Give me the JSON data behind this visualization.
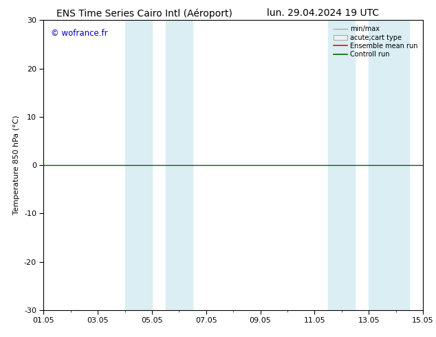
{
  "title_left": "ENS Time Series Cairo Intl (Aéroport)",
  "title_right": "lun. 29.04.2024 19 UTC",
  "ylabel": "Temperature 850 hPa (°C)",
  "watermark": "© wofrance.fr",
  "ylim": [
    -30,
    30
  ],
  "yticks": [
    -30,
    -20,
    -10,
    0,
    10,
    20,
    30
  ],
  "xtick_labels": [
    "01.05",
    "03.05",
    "05.05",
    "07.05",
    "09.05",
    "11.05",
    "13.05",
    "15.05"
  ],
  "xtick_positions_days": [
    0,
    2,
    4,
    6,
    8,
    10,
    12,
    14
  ],
  "blue_bands": [
    {
      "start_day": 3.0,
      "end_day": 4.0
    },
    {
      "start_day": 4.5,
      "end_day": 5.5
    },
    {
      "start_day": 10.5,
      "end_day": 11.5
    },
    {
      "start_day": 12.0,
      "end_day": 13.5
    }
  ],
  "hline_y": 0,
  "hline_color": "#006600",
  "band_color": "#daeef3",
  "background_color": "#ffffff",
  "plot_bg_color": "#ffffff",
  "watermark_color": "#0000cc",
  "title_fontsize": 10,
  "axis_fontsize": 8,
  "tick_fontsize": 8,
  "legend_gray": "#aaaaaa",
  "legend_red": "#ff0000",
  "legend_green": "#006600"
}
